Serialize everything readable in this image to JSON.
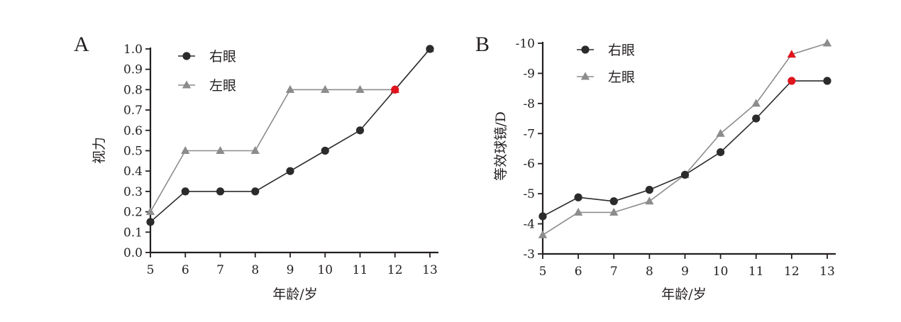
{
  "chart_data": [
    {
      "panel": "A",
      "type": "line",
      "xlabel": "年龄/岁",
      "ylabel": "视力",
      "xlim": [
        5,
        13
      ],
      "ylim": [
        0,
        1.0
      ],
      "x_ticks": [
        "5",
        "6",
        "7",
        "8",
        "9",
        "10",
        "11",
        "12",
        "13"
      ],
      "y_ticks": [
        "0.0",
        "0.1",
        "0.2",
        "0.3",
        "0.4",
        "0.5",
        "0.6",
        "0.7",
        "0.8",
        "0.9",
        "1.0"
      ],
      "legend_position": "top-left",
      "highlight_x": 12,
      "highlight_color": "#e0141e",
      "series": [
        {
          "name": "右眼",
          "marker": "circle",
          "color": "#2b2b2b",
          "x": [
            5,
            6,
            7,
            8,
            9,
            10,
            11,
            12,
            13
          ],
          "values": [
            0.15,
            0.3,
            0.3,
            0.3,
            0.4,
            0.5,
            0.6,
            0.8,
            1.0
          ]
        },
        {
          "name": "左眼",
          "marker": "triangle",
          "color": "#8c8c8c",
          "x": [
            5,
            6,
            7,
            8,
            9,
            10,
            11,
            12,
            13
          ],
          "values": [
            0.2,
            0.5,
            0.5,
            0.5,
            0.8,
            0.8,
            0.8,
            0.8,
            1.0
          ]
        }
      ]
    },
    {
      "panel": "B",
      "type": "line",
      "xlabel": "年龄/岁",
      "ylabel": "等效球镜/D",
      "xlim": [
        5,
        13
      ],
      "ylim": [
        -3,
        -10
      ],
      "y_reversed": true,
      "x_ticks": [
        "5",
        "6",
        "7",
        "8",
        "9",
        "10",
        "11",
        "12",
        "13"
      ],
      "y_ticks": [
        "-3",
        "-4",
        "-5",
        "-6",
        "-7",
        "-8",
        "-9",
        "-10"
      ],
      "legend_position": "top-left",
      "highlight_x": 12,
      "highlight_color": "#e0141e",
      "series": [
        {
          "name": "右眼",
          "marker": "circle",
          "color": "#2b2b2b",
          "x": [
            5,
            6,
            7,
            8,
            9,
            10,
            11,
            12,
            13
          ],
          "values": [
            -4.25,
            -4.88,
            -4.75,
            -5.13,
            -5.63,
            -6.38,
            -7.5,
            -8.75,
            -8.75
          ]
        },
        {
          "name": "左眼",
          "marker": "triangle",
          "color": "#8c8c8c",
          "x": [
            5,
            6,
            7,
            8,
            9,
            10,
            11,
            12,
            13
          ],
          "values": [
            -3.63,
            -4.38,
            -4.38,
            -4.75,
            -5.63,
            -7.0,
            -8.0,
            -9.63,
            -10.0
          ]
        }
      ]
    }
  ]
}
